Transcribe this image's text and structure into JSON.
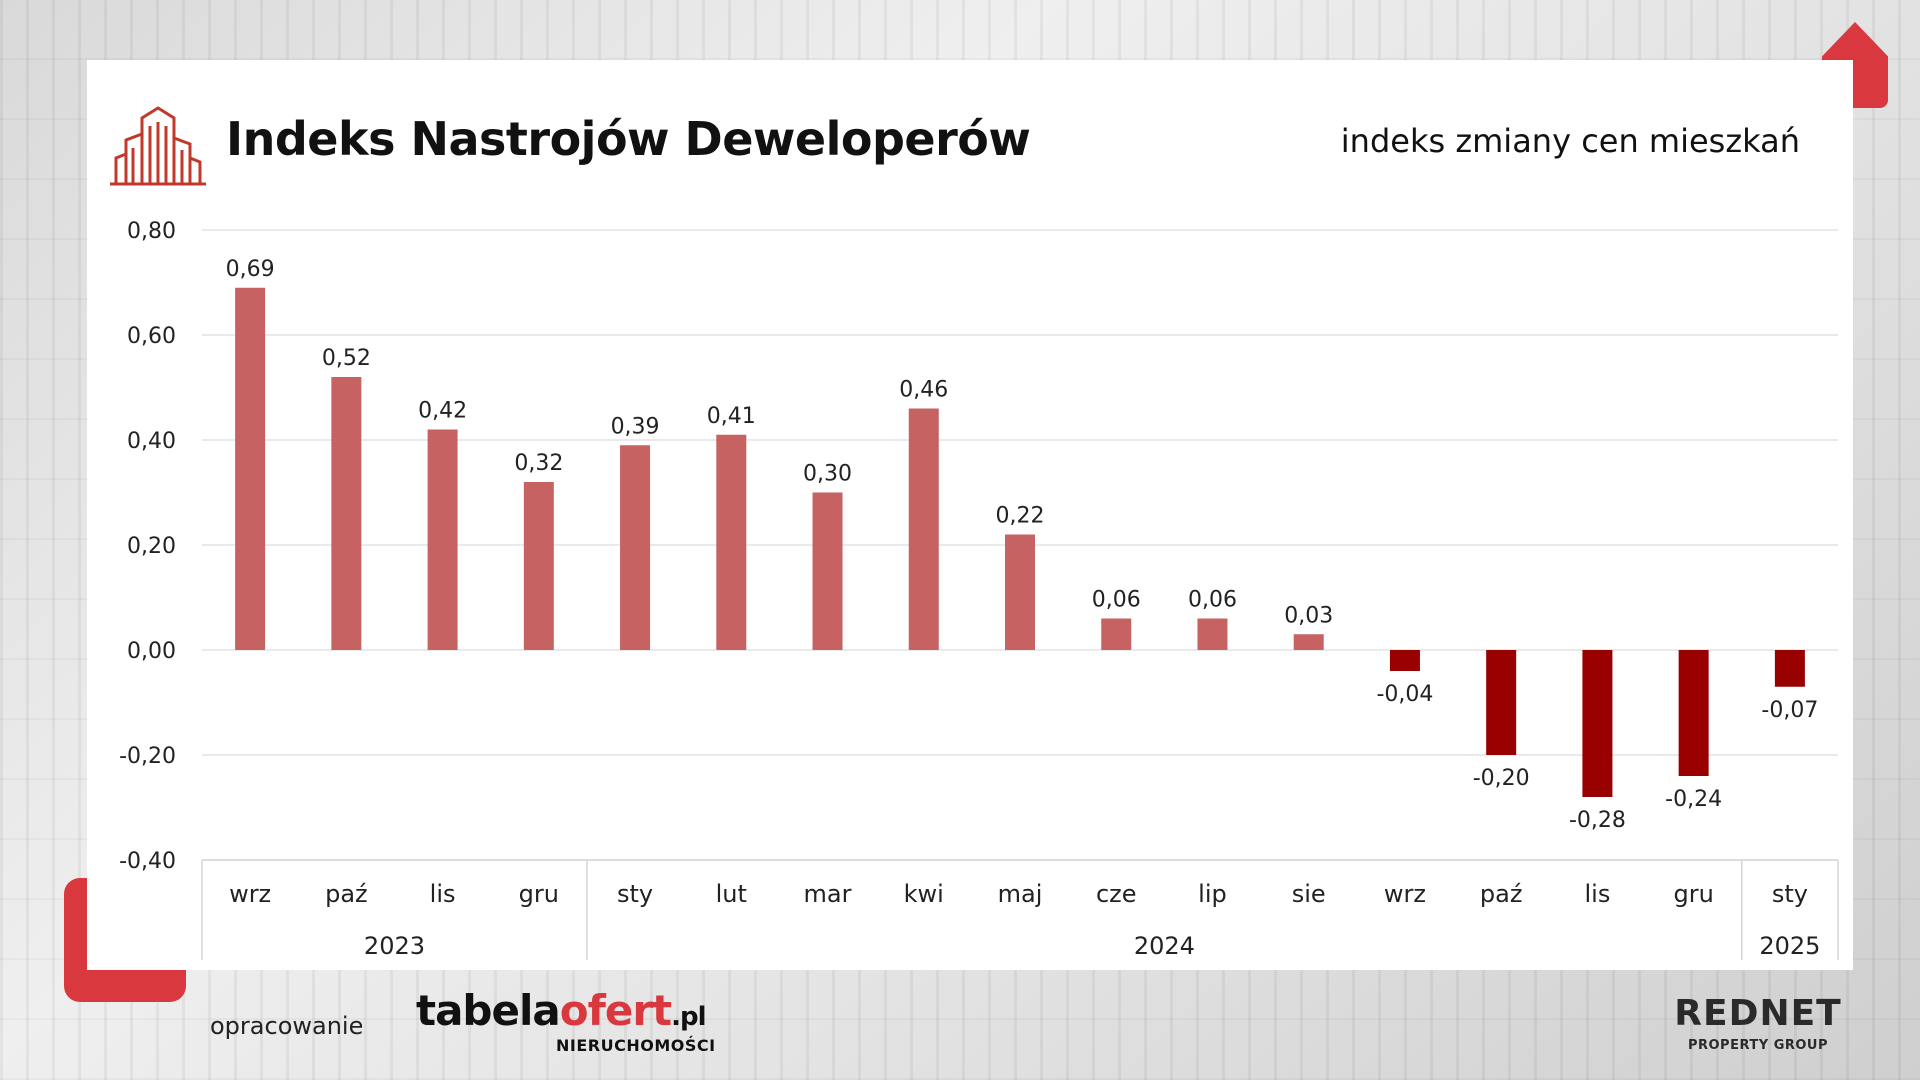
{
  "header": {
    "title": "Indeks Nastrojów Deweloperów",
    "subtitle": "indeks zmiany cen mieszkań"
  },
  "footer": {
    "label": "opracowanie",
    "brand_primary_dark": "tabela",
    "brand_primary_accent": "ofert",
    "brand_primary_tld": ".pl",
    "brand_primary_sub": "NIERUCHOMOŚCI",
    "brand_secondary": "REDNET",
    "brand_secondary_sub": "PROPERTY GROUP"
  },
  "colors": {
    "positive_bar": "#c66262",
    "negative_bar": "#990000",
    "accent": "#d9383f"
  },
  "chart_data": {
    "type": "bar",
    "title": "",
    "xlabel": "",
    "ylabel": "",
    "ylim": [
      -0.4,
      0.8
    ],
    "y_ticks": [
      "0,80",
      "0,60",
      "0,40",
      "0,20",
      "0,00",
      "-0,20",
      "-0,40"
    ],
    "grid": true,
    "legend": "none",
    "categories": [
      "wrz",
      "paź",
      "lis",
      "gru",
      "sty",
      "lut",
      "mar",
      "kwi",
      "maj",
      "cze",
      "lip",
      "sie",
      "wrz",
      "paź",
      "lis",
      "gru",
      "sty"
    ],
    "values": [
      0.69,
      0.52,
      0.42,
      0.32,
      0.39,
      0.41,
      0.3,
      0.46,
      0.22,
      0.06,
      0.06,
      0.03,
      -0.04,
      -0.2,
      -0.28,
      -0.24,
      -0.07
    ],
    "value_labels": [
      "0,69",
      "0,52",
      "0,42",
      "0,32",
      "0,39",
      "0,41",
      "0,30",
      "0,46",
      "0,22",
      "0,06",
      "0,06",
      "0,03",
      "-0,04",
      "-0,20",
      "-0,28",
      "-0,24",
      "-0,07"
    ],
    "year_groups": [
      {
        "label": "2023",
        "start": 0,
        "end": 3
      },
      {
        "label": "2024",
        "start": 4,
        "end": 15
      },
      {
        "label": "2025",
        "start": 16,
        "end": 16
      }
    ]
  }
}
